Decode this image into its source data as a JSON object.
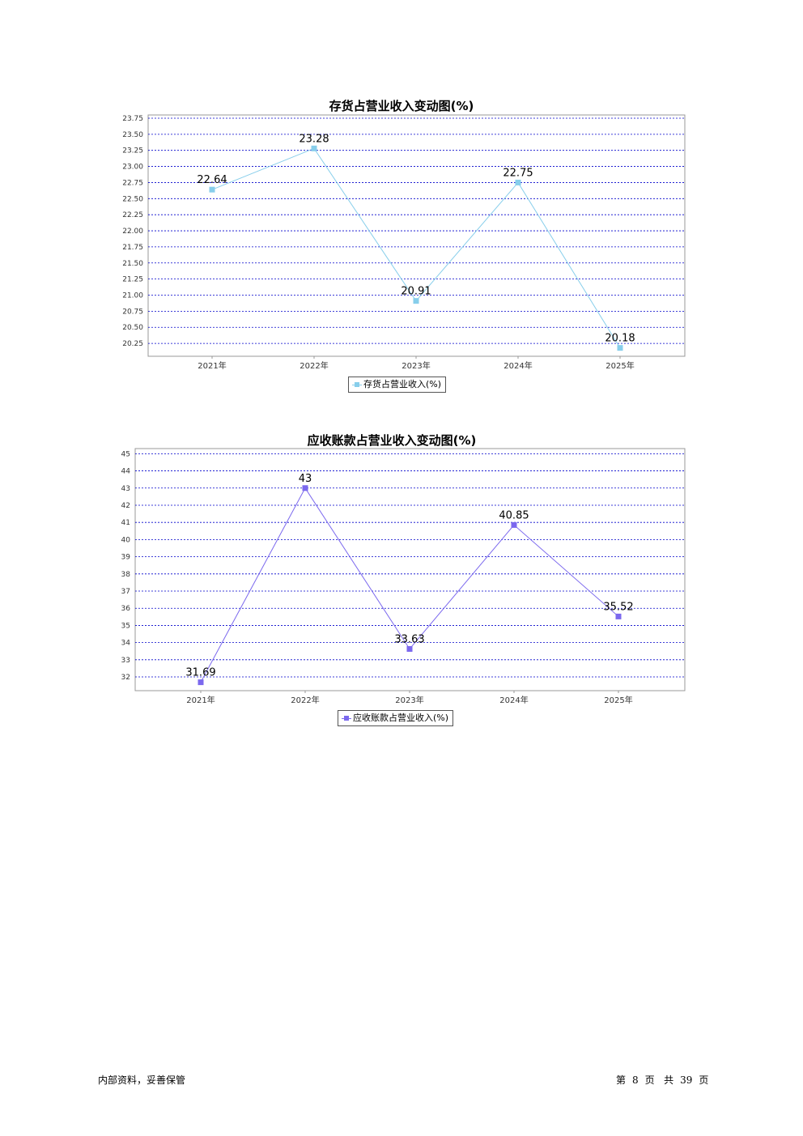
{
  "chart_data": [
    {
      "type": "line",
      "title": "存货占营业收入变动图(%)",
      "categories": [
        "2021年",
        "2022年",
        "2023年",
        "2024年",
        "2025年"
      ],
      "series": [
        {
          "name": "存货占营业收入(%)",
          "values": [
            22.64,
            23.28,
            20.91,
            22.75,
            20.18
          ],
          "color": "#87CEEB"
        }
      ],
      "data_labels": [
        "22.64",
        "23.28",
        "20.91",
        "22.75",
        "20.18"
      ],
      "y_ticks": [
        "23.75",
        "23.50",
        "23.25",
        "23.00",
        "22.75",
        "22.50",
        "22.25",
        "22.00",
        "21.75",
        "21.50",
        "21.25",
        "21.00",
        "20.75",
        "20.50",
        "20.25"
      ],
      "ylim": [
        20.05,
        23.8
      ],
      "grid": true,
      "grid_color": "#0000CC",
      "legend": "bottom"
    },
    {
      "type": "line",
      "title": "应收账款占营业收入变动图(%)",
      "categories": [
        "2021年",
        "2022年",
        "2023年",
        "2024年",
        "2025年"
      ],
      "series": [
        {
          "name": "应收账款占营业收入(%)",
          "values": [
            31.69,
            43,
            33.63,
            40.85,
            35.52
          ],
          "color": "#7B68EE"
        }
      ],
      "data_labels": [
        "31.69",
        "43",
        "33.63",
        "40.85",
        "35.52"
      ],
      "y_ticks": [
        "45",
        "44",
        "43",
        "42",
        "41",
        "40",
        "39",
        "38",
        "37",
        "36",
        "35",
        "34",
        "33",
        "32"
      ],
      "ylim": [
        31.2,
        45.3
      ],
      "grid": true,
      "grid_color": "#0000CC",
      "legend": "bottom"
    }
  ],
  "footer": {
    "left": "内部资料，妥善保管",
    "page_prefix": "第",
    "page_num": "8",
    "page_unit": "页",
    "total_prefix": "共",
    "total_num": "39",
    "total_unit": "页"
  }
}
